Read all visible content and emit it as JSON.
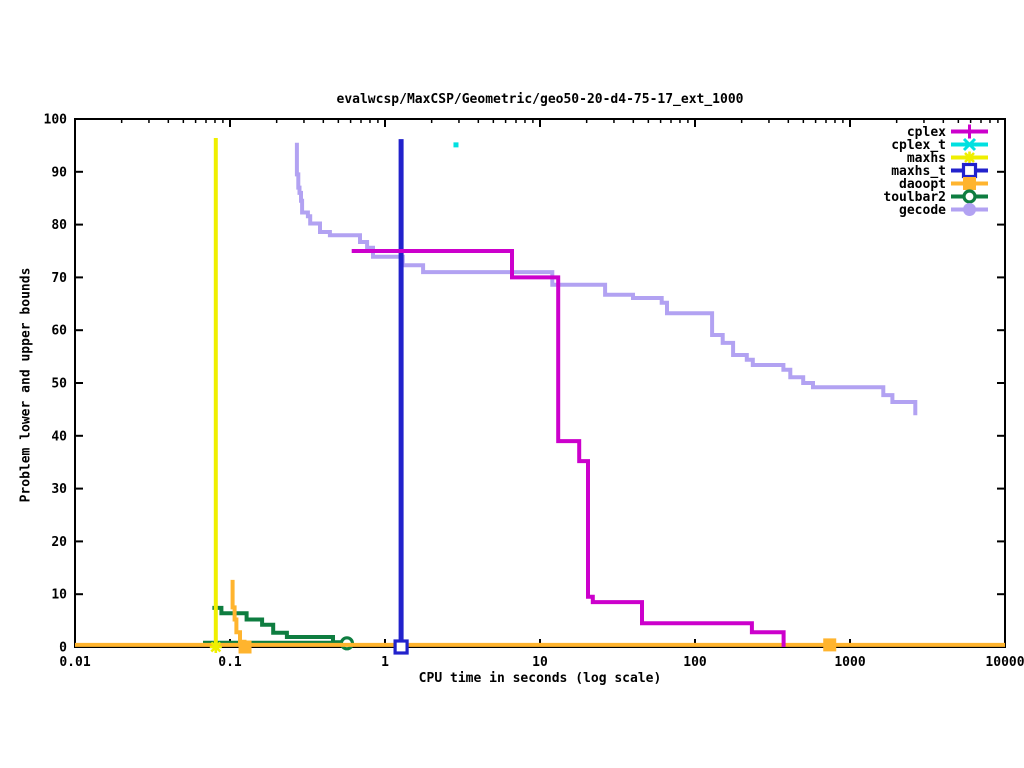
{
  "chart_data": {
    "type": "line",
    "title": "evalwcsp/MaxCSP/Geometric/geo50-20-d4-75-17_ext_1000",
    "xlabel": "CPU time in seconds (log scale)",
    "ylabel": "Problem lower and upper bounds",
    "x_scale": "log",
    "xlim": [
      0.01,
      10000
    ],
    "ylim": [
      0,
      100
    ],
    "x_tick_labels": [
      "0.01",
      "0.1",
      "1",
      "10",
      "100",
      "1000",
      "10000"
    ],
    "y_tick_min": 0,
    "y_tick_max": 100,
    "y_tick_step": 10,
    "grid": false,
    "legend_position": "top-right-inside",
    "series": [
      {
        "name": "cplex",
        "color": "#cc00cc",
        "marker": "plus",
        "width": 4,
        "lines": [
          [
            [
              0.61,
              75
            ],
            [
              6.6,
              75
            ],
            [
              6.6,
              70
            ],
            [
              13.1,
              70
            ],
            [
              13.1,
              39
            ],
            [
              17.9,
              39
            ],
            [
              17.9,
              35.2
            ],
            [
              20.4,
              35.2
            ],
            [
              20.4,
              9.5
            ],
            [
              21.9,
              9.5
            ],
            [
              21.9,
              8.5
            ],
            [
              45.5,
              8.5
            ],
            [
              45.5,
              4.5
            ],
            [
              233,
              4.5
            ],
            [
              233,
              2.8
            ],
            [
              373,
              2.8
            ],
            [
              373,
              0
            ]
          ]
        ],
        "marker_points": []
      },
      {
        "name": "cplex_t",
        "color": "#00e0e0",
        "marker": "cross",
        "plot_marker": "dot",
        "width": 4,
        "lines": [],
        "marker_points": [
          [
            2.87,
            95.1
          ]
        ]
      },
      {
        "name": "maxhs",
        "color": "#efef00",
        "marker": "star",
        "width": 4,
        "lines": [
          [
            [
              0.081,
              0
            ],
            [
              0.081,
              96.4
            ]
          ]
        ],
        "marker_points": [
          [
            0.081,
            0
          ]
        ]
      },
      {
        "name": "maxhs_t",
        "color": "#2222cc",
        "marker": "open-square",
        "width": 5,
        "lines": [
          [
            [
              1.27,
              0
            ],
            [
              1.27,
              96.2
            ]
          ]
        ],
        "marker_points": [
          [
            1.27,
            0
          ]
        ]
      },
      {
        "name": "daoopt",
        "color": "#ffb42e",
        "marker": "filled-square",
        "width": 4,
        "lines": [
          [
            [
              0.104,
              12.7
            ],
            [
              0.104,
              7.5
            ],
            [
              0.107,
              7.5
            ],
            [
              0.107,
              5.2
            ],
            [
              0.11,
              5.2
            ],
            [
              0.11,
              2.8
            ],
            [
              0.116,
              2.8
            ],
            [
              0.116,
              1.0
            ],
            [
              0.124,
              1.0
            ],
            [
              0.124,
              0.4
            ],
            [
              10000,
              0.4
            ]
          ],
          [
            [
              0.01,
              0.4
            ],
            [
              0.124,
              0.4
            ]
          ]
        ],
        "marker_points": [
          [
            0.125,
            0
          ],
          [
            740,
            0.4
          ]
        ]
      },
      {
        "name": "toulbar2",
        "color": "#0e7d40",
        "marker": "open-circle",
        "width": 4,
        "lines": [
          [
            [
              0.077,
              7.4
            ],
            [
              0.088,
              7.4
            ],
            [
              0.088,
              6.4
            ],
            [
              0.128,
              6.4
            ],
            [
              0.128,
              5.2
            ],
            [
              0.161,
              5.2
            ],
            [
              0.161,
              4.2
            ],
            [
              0.19,
              4.2
            ],
            [
              0.19,
              2.7
            ],
            [
              0.233,
              2.7
            ],
            [
              0.233,
              1.9
            ],
            [
              0.462,
              1.9
            ],
            [
              0.462,
              0.9
            ],
            [
              0.568,
              0.9
            ]
          ],
          [
            [
              0.067,
              0.8
            ],
            [
              0.568,
              0.8
            ]
          ]
        ],
        "marker_points": [
          [
            0.568,
            0.7
          ]
        ]
      },
      {
        "name": "gecode",
        "color": "#b2a2f2",
        "marker": "filled-circle",
        "width": 4,
        "lines": [
          [
            [
              0.27,
              95.5
            ],
            [
              0.27,
              89.5
            ],
            [
              0.276,
              89.5
            ],
            [
              0.276,
              87
            ],
            [
              0.281,
              87
            ],
            [
              0.281,
              86
            ],
            [
              0.287,
              86
            ],
            [
              0.287,
              84.5
            ],
            [
              0.292,
              84.5
            ],
            [
              0.292,
              82.3
            ],
            [
              0.318,
              82.3
            ],
            [
              0.318,
              81.6
            ],
            [
              0.329,
              81.6
            ],
            [
              0.329,
              80.2
            ],
            [
              0.381,
              80.2
            ],
            [
              0.381,
              78.6
            ],
            [
              0.441,
              78.6
            ],
            [
              0.441,
              78
            ],
            [
              0.69,
              78
            ],
            [
              0.69,
              76.7
            ],
            [
              0.766,
              76.7
            ],
            [
              0.766,
              75.6
            ],
            [
              0.837,
              75.6
            ],
            [
              0.837,
              73.9
            ],
            [
              1.3,
              73.9
            ],
            [
              1.3,
              72.3
            ],
            [
              1.76,
              72.3
            ],
            [
              1.76,
              71
            ],
            [
              12,
              71
            ],
            [
              12,
              68.6
            ],
            [
              26.3,
              68.6
            ],
            [
              26.3,
              66.7
            ],
            [
              39.8,
              66.7
            ],
            [
              39.8,
              66.1
            ],
            [
              61,
              66.1
            ],
            [
              61,
              65.2
            ],
            [
              66,
              65.2
            ],
            [
              66,
              63.2
            ],
            [
              129,
              63.2
            ],
            [
              129,
              59.1
            ],
            [
              151,
              59.1
            ],
            [
              151,
              57.6
            ],
            [
              176,
              57.6
            ],
            [
              176,
              55.3
            ],
            [
              216,
              55.3
            ],
            [
              216,
              54.4
            ],
            [
              236,
              54.4
            ],
            [
              236,
              53.4
            ],
            [
              372,
              53.4
            ],
            [
              372,
              52.5
            ],
            [
              412,
              52.5
            ],
            [
              412,
              51.1
            ],
            [
              499,
              51.1
            ],
            [
              499,
              50
            ],
            [
              577,
              50
            ],
            [
              577,
              49.2
            ],
            [
              1640,
              49.2
            ],
            [
              1640,
              47.7
            ],
            [
              1876,
              47.7
            ],
            [
              1876,
              46.4
            ],
            [
              2640,
              46.4
            ],
            [
              2640,
              43.9
            ]
          ]
        ],
        "marker_points": []
      }
    ]
  }
}
